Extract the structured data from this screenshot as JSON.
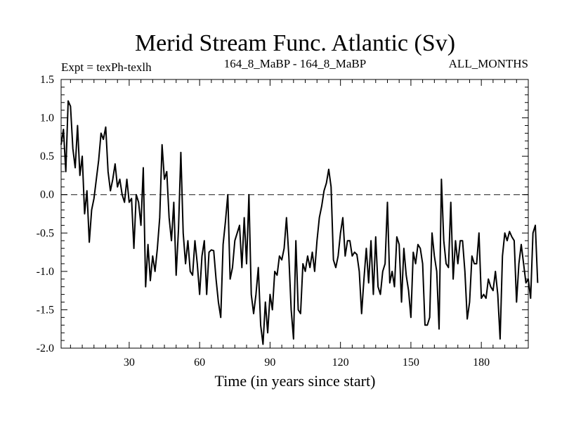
{
  "chart_data": {
    "type": "line",
    "title": "Merid Stream Func. Atlantic (Sv)",
    "subtitle_left": "Expt = texPh-texlh",
    "subtitle_center": "164_8_MaBP - 164_8_MaBP",
    "subtitle_right": "ALL_MONTHS",
    "xlabel": "Time (in years since start)",
    "ylabel": "",
    "xlim": [
      1,
      200
    ],
    "ylim": [
      -2.0,
      1.5
    ],
    "xticks": [
      30,
      60,
      90,
      120,
      150,
      180
    ],
    "xtick_labels": [
      "30",
      "60",
      "90",
      "120",
      "150",
      "180"
    ],
    "yticks": [
      1.5,
      1.0,
      0.5,
      0.0,
      -0.5,
      -1.0,
      -1.5,
      -2.0
    ],
    "ytick_labels": [
      "1.5",
      "1.0",
      "0.5",
      "0.0",
      "-0.5",
      "-1.0",
      "-1.5",
      "-2.0"
    ],
    "reference_line": {
      "y": 0.0,
      "style": "dashed"
    },
    "series": [
      {
        "name": "Merid Stream Func. Atlantic",
        "x_start": 1,
        "x_step": 1,
        "values": [
          0.65,
          0.85,
          0.3,
          1.22,
          1.15,
          0.6,
          0.35,
          0.9,
          0.25,
          0.5,
          -0.25,
          0.05,
          -0.62,
          -0.2,
          -0.05,
          0.2,
          0.45,
          0.8,
          0.72,
          0.88,
          0.3,
          0.05,
          0.2,
          0.4,
          0.1,
          0.2,
          0.0,
          -0.1,
          0.2,
          -0.1,
          -0.05,
          -0.7,
          0.0,
          -0.1,
          -0.4,
          0.35,
          -1.2,
          -0.65,
          -1.12,
          -0.8,
          -1.0,
          -0.7,
          -0.3,
          0.65,
          0.2,
          0.3,
          -0.3,
          -0.6,
          -0.1,
          -1.05,
          -0.45,
          0.55,
          -0.5,
          -0.9,
          -0.6,
          -1.0,
          -1.05,
          -0.6,
          -0.9,
          -1.3,
          -0.8,
          -0.6,
          -1.3,
          -0.75,
          -0.72,
          -0.73,
          -1.1,
          -1.4,
          -1.6,
          -0.65,
          -0.35,
          0.0,
          -1.1,
          -0.95,
          -0.6,
          -0.5,
          -0.4,
          -0.95,
          -0.3,
          -0.9,
          0.0,
          -1.3,
          -1.55,
          -1.3,
          -0.95,
          -1.7,
          -1.95,
          -1.4,
          -1.8,
          -1.3,
          -1.5,
          -1.0,
          -1.05,
          -0.8,
          -0.85,
          -0.7,
          -0.3,
          -0.8,
          -1.5,
          -1.88,
          -0.6,
          -1.5,
          -1.55,
          -0.9,
          -1.0,
          -0.8,
          -0.95,
          -0.75,
          -1.0,
          -0.6,
          -0.3,
          -0.15,
          0.05,
          0.15,
          0.33,
          0.1,
          -0.85,
          -0.95,
          -0.8,
          -0.5,
          -0.3,
          -0.8,
          -0.6,
          -0.6,
          -0.8,
          -0.75,
          -0.78,
          -1.0,
          -1.55,
          -1.1,
          -0.7,
          -1.15,
          -0.6,
          -1.3,
          -0.55,
          -1.2,
          -1.3,
          -1.0,
          -0.9,
          -0.1,
          -1.15,
          -1.0,
          -1.2,
          -0.55,
          -0.65,
          -1.4,
          -0.7,
          -1.05,
          -1.25,
          -1.6,
          -0.75,
          -0.9,
          -0.65,
          -0.7,
          -0.9,
          -1.7,
          -1.7,
          -1.6,
          -0.5,
          -0.8,
          -1.0,
          -1.75,
          0.2,
          -0.6,
          -0.9,
          -0.95,
          -0.1,
          -1.1,
          -0.6,
          -0.9,
          -0.6,
          -0.6,
          -1.0,
          -1.62,
          -1.4,
          -0.8,
          -0.9,
          -0.9,
          -0.5,
          -1.35,
          -1.3,
          -1.35,
          -1.1,
          -1.2,
          -1.25,
          -1.0,
          -1.3,
          -1.88,
          -0.8,
          -0.5,
          -0.6,
          -0.48,
          -0.55,
          -0.6,
          -1.4,
          -0.9,
          -0.65,
          -0.9,
          -1.15,
          -1.1,
          -1.35,
          -0.5,
          -0.4,
          -1.15
        ]
      }
    ]
  }
}
